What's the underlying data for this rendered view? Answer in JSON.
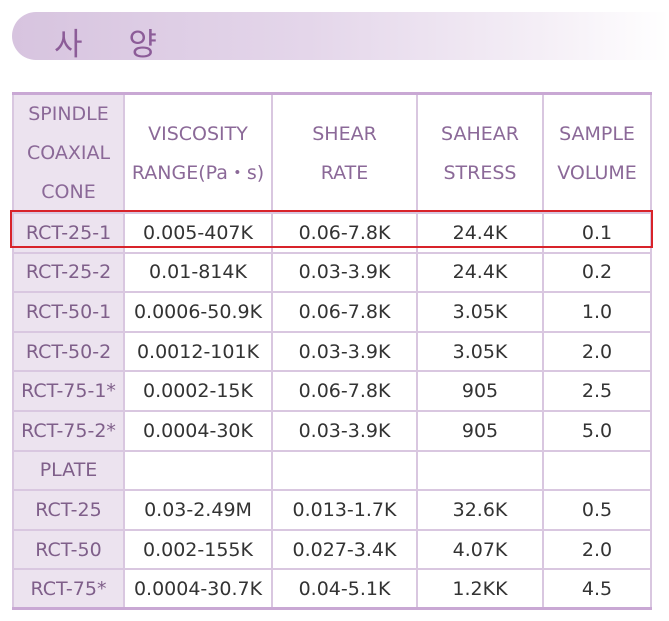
{
  "section_title": "사 양",
  "header": {
    "name": [
      "SPINDLE",
      "COAXIAL",
      "CONE"
    ],
    "viscosity": [
      "VISCOSITY",
      "RANGE(Pa・s)"
    ],
    "shear_rate": [
      "SHEAR",
      "RATE"
    ],
    "shear_stress": [
      "SAHEAR",
      "STRESS"
    ],
    "sample_volume": [
      "SAMPLE",
      "VOLUME"
    ]
  },
  "rows": [
    {
      "name": "RCT-25-1",
      "viscosity": "0.005-407K",
      "shear_rate": "0.06-7.8K",
      "shear_stress": "24.4K",
      "sample_volume": "0.1"
    },
    {
      "name": "RCT-25-2",
      "viscosity": "0.01-814K",
      "shear_rate": "0.03-3.9K",
      "shear_stress": "24.4K",
      "sample_volume": "0.2"
    },
    {
      "name": "RCT-50-1",
      "viscosity": "0.0006-50.9K",
      "shear_rate": "0.06-7.8K",
      "shear_stress": "3.05K",
      "sample_volume": "1.0"
    },
    {
      "name": "RCT-50-2",
      "viscosity": "0.0012-101K",
      "shear_rate": "0.03-3.9K",
      "shear_stress": "3.05K",
      "sample_volume": "2.0"
    },
    {
      "name": "RCT-75-1*",
      "viscosity": "0.0002-15K",
      "shear_rate": "0.06-7.8K",
      "shear_stress": "905",
      "sample_volume": "2.5"
    },
    {
      "name": "RCT-75-2*",
      "viscosity": "0.0004-30K",
      "shear_rate": "0.03-3.9K",
      "shear_stress": "905",
      "sample_volume": "5.0"
    },
    {
      "name": "PLATE",
      "viscosity": "",
      "shear_rate": "",
      "shear_stress": "",
      "sample_volume": ""
    },
    {
      "name": "RCT-25",
      "viscosity": "0.03-2.49M",
      "shear_rate": "0.013-1.7K",
      "shear_stress": "32.6K",
      "sample_volume": "0.5"
    },
    {
      "name": "RCT-50",
      "viscosity": "0.002-155K",
      "shear_rate": "0.027-3.4K",
      "shear_stress": "4.07K",
      "sample_volume": "2.0"
    },
    {
      "name": "RCT-75*",
      "viscosity": "0.0004-30.7K",
      "shear_rate": "0.04-5.1K",
      "shear_stress": "1.2KK",
      "sample_volume": "4.5"
    }
  ],
  "colors": {
    "title_gradient_start": "#d7c4df",
    "title_text": "#8c5c98",
    "name_column_bg": "#ece3ef",
    "grid_lines": "#d9c7e0",
    "highlight_border": "#d8232a"
  }
}
